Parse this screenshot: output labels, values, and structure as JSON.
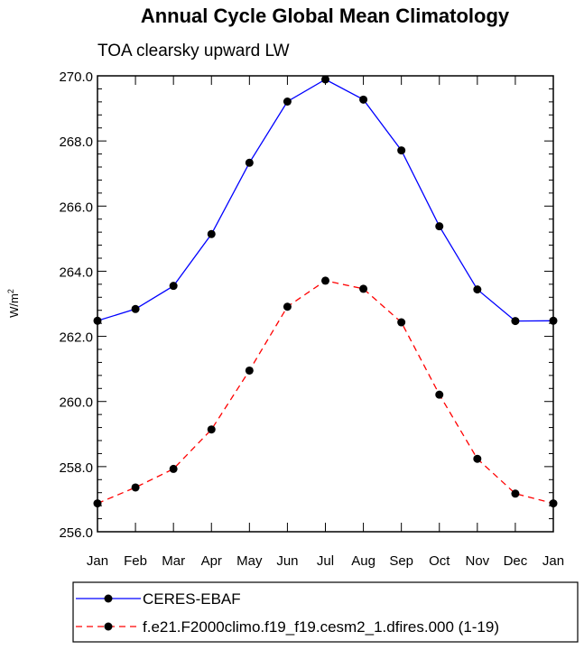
{
  "chart_data": {
    "type": "line",
    "title": "Annual Cycle Global Mean Climatology",
    "subtitle": "TOA clearsky upward LW",
    "ylabel": "W/m",
    "ylabel_sup": "2",
    "xlabel": "",
    "categories": [
      "Jan",
      "Feb",
      "Mar",
      "Apr",
      "May",
      "Jun",
      "Jul",
      "Aug",
      "Sep",
      "Oct",
      "Nov",
      "Dec",
      "Jan"
    ],
    "ylim": [
      256.0,
      270.0
    ],
    "yticks": [
      "256.0",
      "258.0",
      "260.0",
      "262.0",
      "264.0",
      "266.0",
      "268.0",
      "270.0"
    ],
    "yticks_values": [
      256,
      258,
      260,
      262,
      264,
      266,
      268,
      270
    ],
    "legend_position": "bottom",
    "series": [
      {
        "name": "CERES-EBAF",
        "color": "#0000ff",
        "dash": "solid",
        "values": [
          262.48,
          262.84,
          263.55,
          265.14,
          267.33,
          269.21,
          269.89,
          269.27,
          267.71,
          265.38,
          263.44,
          262.47,
          262.48
        ]
      },
      {
        "name": "f.e21.F2000climo.f19_f19.cesm2_1.dfires.000 (1-19)",
        "color": "#ff0000",
        "dash": "dashed",
        "values": [
          256.87,
          257.36,
          257.93,
          259.14,
          260.95,
          262.91,
          263.71,
          263.46,
          262.43,
          260.21,
          258.24,
          257.17,
          256.87
        ]
      }
    ]
  }
}
